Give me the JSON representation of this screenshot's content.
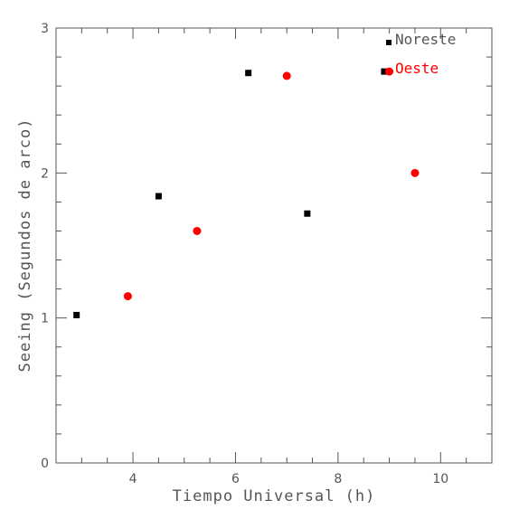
{
  "chart_data": {
    "type": "scatter",
    "title": "",
    "xlabel": "Tiempo Universal (h)",
    "ylabel": "Seeing (Segundos de arco)",
    "xlim": [
      2.5,
      11
    ],
    "ylim": [
      0,
      3
    ],
    "x_ticks": [
      4,
      6,
      8,
      10
    ],
    "y_ticks": [
      0,
      1,
      2,
      3
    ],
    "x_tick_labels": [
      "4",
      "6",
      "8",
      "10"
    ],
    "y_tick_labels": [
      "0",
      "1",
      "2",
      "3"
    ],
    "grid": false,
    "legend_position": "top-right",
    "series": [
      {
        "name": "Noreste",
        "marker": "square",
        "color": "#000000",
        "points": [
          {
            "x": 2.9,
            "y": 1.02
          },
          {
            "x": 4.5,
            "y": 1.84
          },
          {
            "x": 6.25,
            "y": 2.69
          },
          {
            "x": 7.4,
            "y": 1.72
          },
          {
            "x": 8.9,
            "y": 2.7
          }
        ]
      },
      {
        "name": "Oeste",
        "marker": "circle",
        "color": "#ff0000",
        "points": [
          {
            "x": 3.9,
            "y": 1.15
          },
          {
            "x": 5.25,
            "y": 1.6
          },
          {
            "x": 7.0,
            "y": 2.67
          },
          {
            "x": 9.0,
            "y": 2.7
          },
          {
            "x": 9.5,
            "y": 2.0
          }
        ]
      }
    ]
  }
}
